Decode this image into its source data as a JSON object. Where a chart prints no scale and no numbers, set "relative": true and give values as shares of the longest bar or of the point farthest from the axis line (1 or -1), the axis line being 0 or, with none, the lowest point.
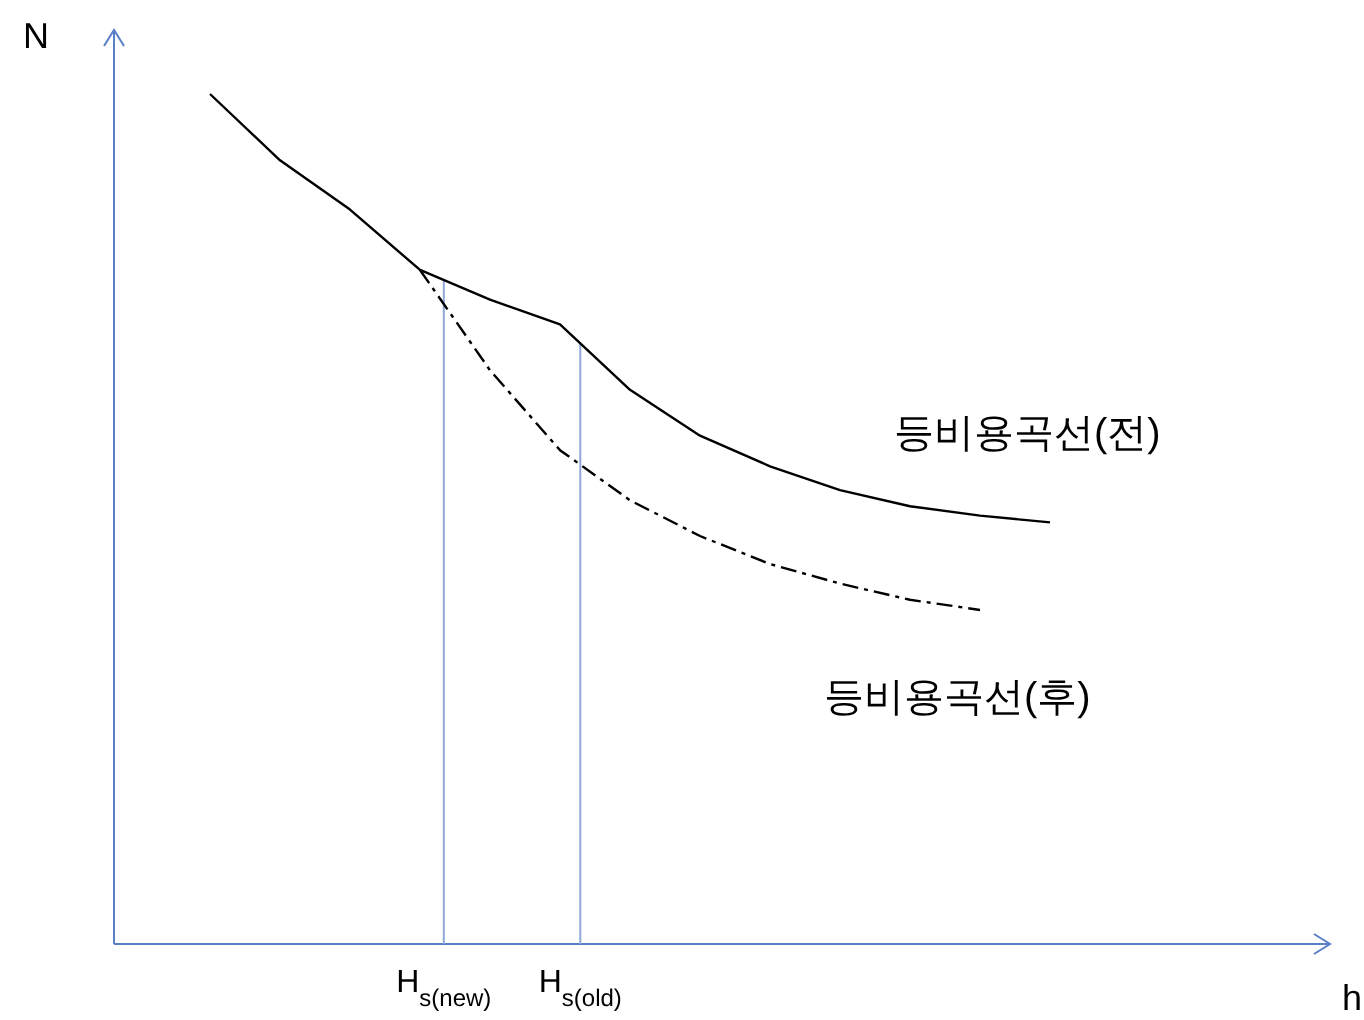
{
  "chart_data": {
    "type": "line",
    "relative": true,
    "ylabel": "N",
    "legend": false,
    "annotations": [
      "h",
      "H$_{s(new)}$",
      "H$_{s(old)}$"
    ],
    "categories": [
      null,
      null,
      null,
      null,
      null,
      null,
      null,
      null,
      null,
      null,
      null,
      null,
      null
    ],
    "series": [
      {
        "name": "등비용곡선(전)",
        "color": "#000000",
        "line_style": "solid",
        "values": [
          1.0,
          0.922,
          0.864,
          0.793,
          0.758,
          0.729,
          0.652,
          0.598,
          0.562,
          0.534,
          0.515,
          0.504,
          0.496
        ]
      },
      {
        "name": "등비용곡선(후)",
        "color": "#000000",
        "line_style": "dashed",
        "values": [
          null,
          null,
          null,
          0.793,
          0.675,
          0.581,
          0.522,
          0.48,
          0.447,
          0.424,
          0.405,
          0.393,
          null
        ]
      }
    ]
  }
}
